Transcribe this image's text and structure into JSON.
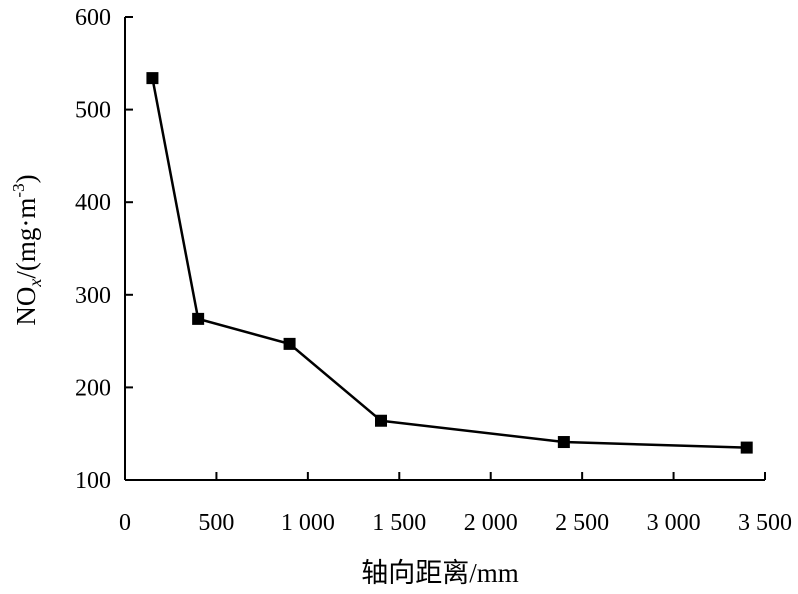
{
  "chart_data": {
    "type": "line",
    "x": [
      150,
      400,
      900,
      1400,
      2400,
      3400
    ],
    "series": [
      {
        "values": [
          534,
          274,
          247,
          164,
          141,
          135
        ]
      }
    ],
    "xlabel": "轴向距离/mm",
    "ylabel": {
      "prefix": "NO",
      "subscript": "x",
      "unit_open": "/(mg·m",
      "superscript": "-3",
      "unit_close": ")"
    },
    "xlim": [
      0,
      3500
    ],
    "ylim": [
      100,
      600
    ],
    "xticks": [
      0,
      500,
      1000,
      1500,
      2000,
      2500,
      3000,
      3500
    ],
    "xtick_labels": [
      "0",
      "500",
      "1 000",
      "1 500",
      "2 000",
      "2 500",
      "3 000",
      "3 500"
    ],
    "yticks": [
      100,
      200,
      300,
      400,
      500,
      600
    ],
    "ytick_labels": [
      "100",
      "200",
      "300",
      "400",
      "500",
      "600"
    ],
    "marker": "square",
    "line_color": "#000000",
    "grid": false,
    "legend": "none"
  }
}
